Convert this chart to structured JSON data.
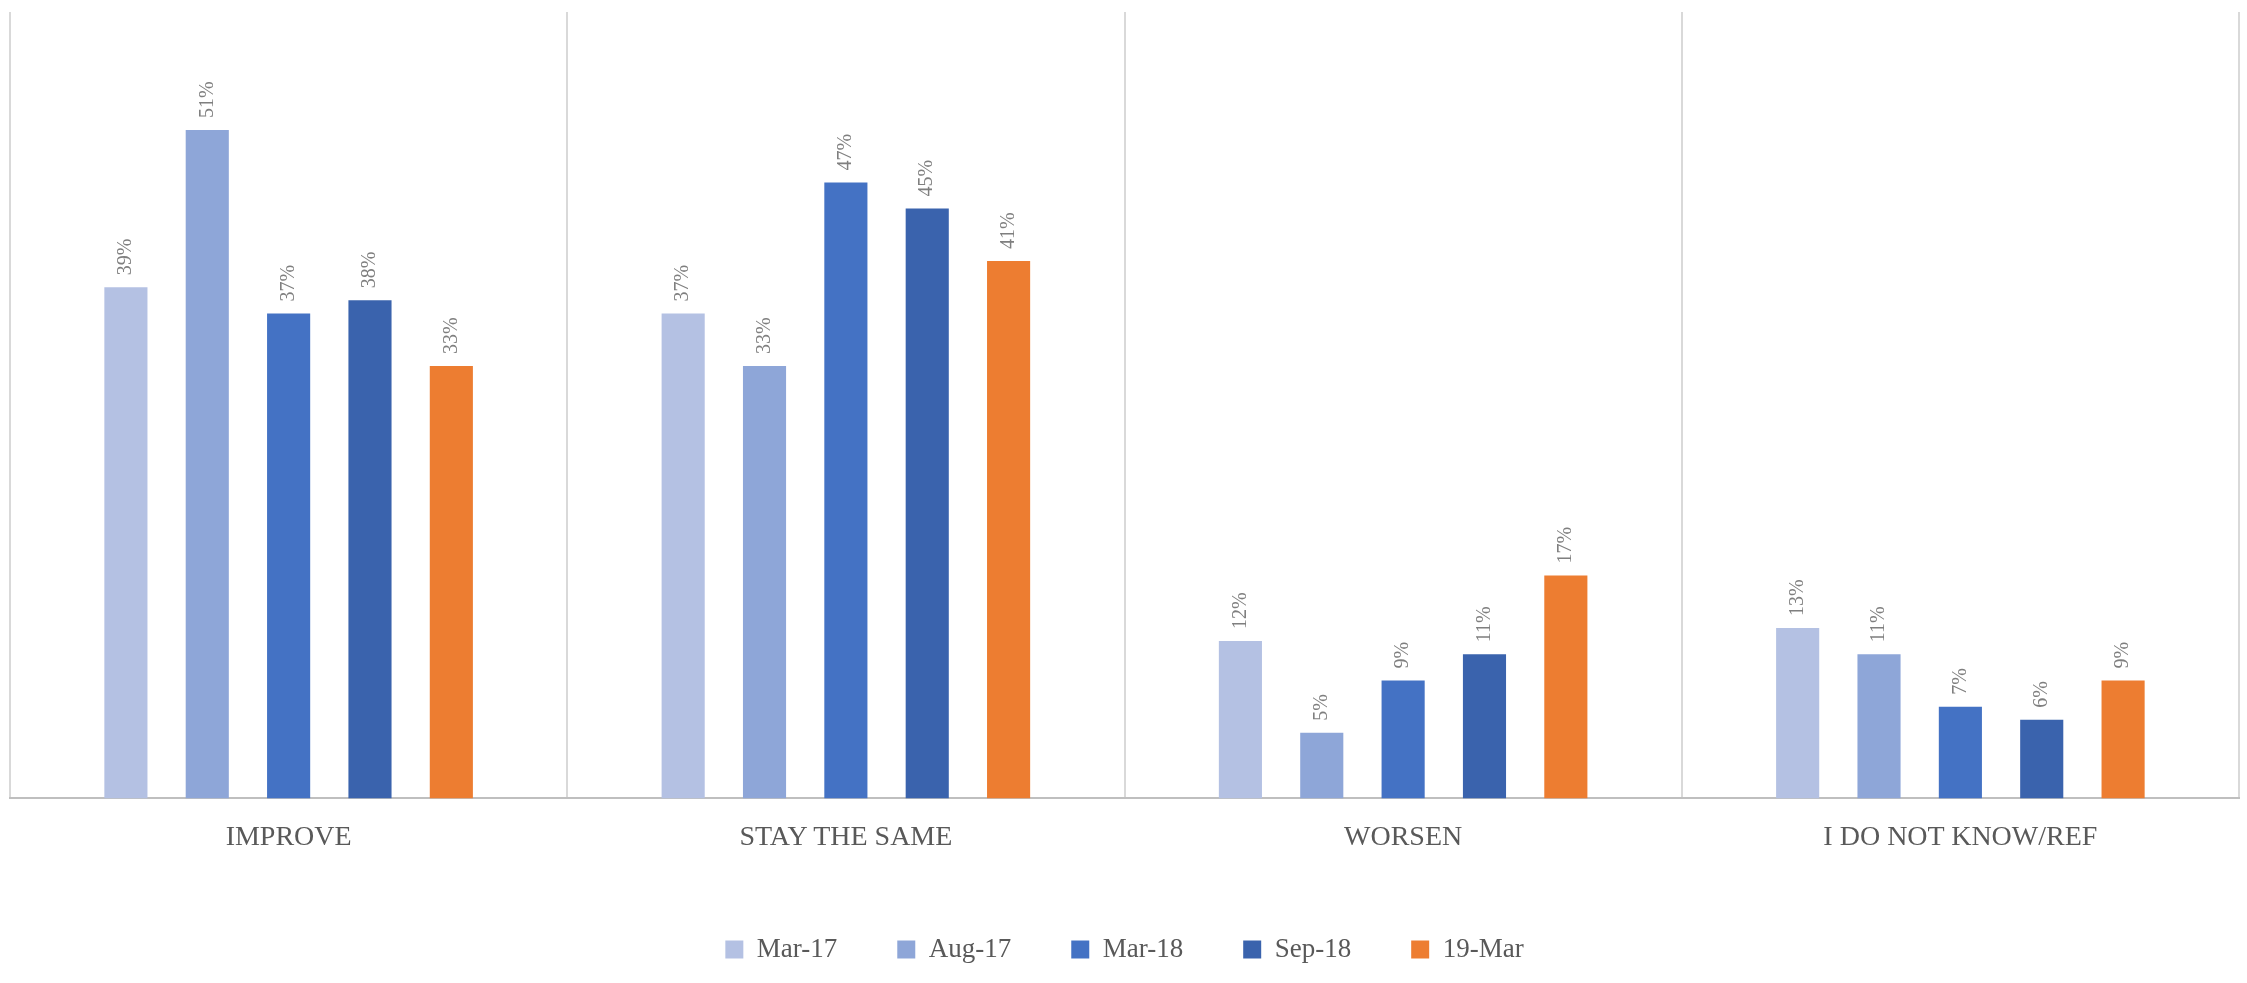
{
  "chart_data": {
    "type": "bar",
    "categories": [
      "IMPROVE",
      "STAY THE SAME",
      "WORSEN",
      "I DO NOT KNOW/REF"
    ],
    "series": [
      {
        "name": "Mar-17",
        "color": "#b4c1e3",
        "values": [
          39,
          37,
          12,
          13
        ],
        "value_labels": [
          "39%",
          "37%",
          "12%",
          "13%"
        ]
      },
      {
        "name": "Aug-17",
        "color": "#8ea6d8",
        "values": [
          51,
          33,
          5,
          11
        ],
        "value_labels": [
          "51%",
          "33%",
          "5%",
          "11%"
        ]
      },
      {
        "name": "Mar-18",
        "color": "#4472c4",
        "values": [
          37,
          47,
          9,
          7
        ],
        "value_labels": [
          "37%",
          "47%",
          "9%",
          "7%"
        ]
      },
      {
        "name": "Sep-18",
        "color": "#3a63ad",
        "values": [
          38,
          45,
          11,
          6
        ],
        "value_labels": [
          "38%",
          "45%",
          "11%",
          "6%"
        ]
      },
      {
        "name": "19-Mar",
        "color": "#ed7d31",
        "values": [
          33,
          41,
          17,
          9
        ],
        "value_labels": [
          "33%",
          "41%",
          "17%",
          "9%"
        ]
      }
    ],
    "grid": "x",
    "legend": "bottom"
  }
}
